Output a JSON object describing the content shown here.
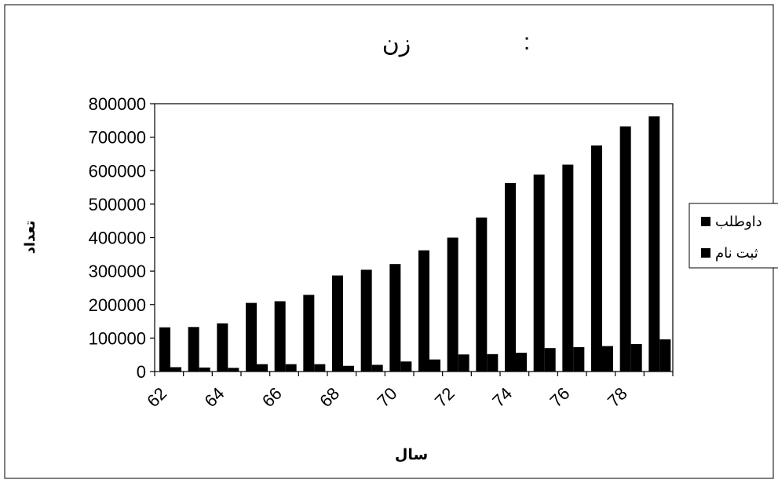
{
  "chart_data": {
    "type": "bar",
    "title": "زن",
    "title_mark": ":",
    "xlabel": "سال",
    "ylabel": "تعداد",
    "ylim": [
      0,
      800000
    ],
    "y_ticks": [
      0,
      100000,
      200000,
      300000,
      400000,
      500000,
      600000,
      700000,
      800000
    ],
    "y_tick_labels": [
      "0",
      "100000",
      "200000",
      "300000",
      "400000",
      "500000",
      "600000",
      "700000",
      "800000"
    ],
    "categories": [
      "62",
      "63",
      "64",
      "65",
      "66",
      "67",
      "68",
      "69",
      "70",
      "71",
      "72",
      "73",
      "74",
      "75",
      "76",
      "77",
      "78",
      "79"
    ],
    "x_tick_labels": [
      "62",
      "",
      "64",
      "",
      "66",
      "",
      "68",
      "",
      "70",
      "",
      "72",
      "",
      "74",
      "",
      "76",
      "",
      "78",
      ""
    ],
    "series": [
      {
        "name": "داوطلب",
        "color": "#000000",
        "values": [
          132000,
          133000,
          144000,
          205000,
          210000,
          229000,
          287000,
          304000,
          321000,
          362000,
          400000,
          460000,
          563000,
          588000,
          618000,
          675000,
          732000,
          762000
        ]
      },
      {
        "name": "ثبت نام",
        "color": "#000000",
        "values": [
          13000,
          12000,
          11000,
          22000,
          22000,
          22000,
          17000,
          20000,
          30000,
          36000,
          51000,
          52000,
          56000,
          70000,
          73000,
          76000,
          82000,
          96000
        ]
      }
    ],
    "grid": false,
    "legend": "right"
  }
}
